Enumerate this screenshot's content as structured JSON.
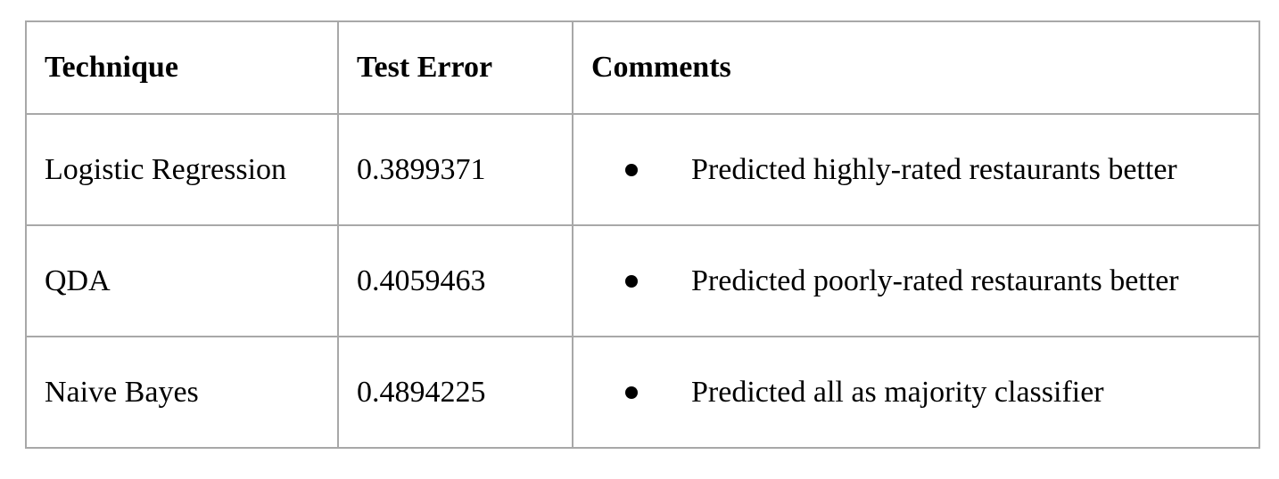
{
  "table": {
    "headers": [
      "Technique",
      "Test Error",
      "Comments"
    ],
    "rows": [
      {
        "technique": "Logistic Regression",
        "test_error": "0.3899371",
        "comment": "Predicted highly-rated restaurants better"
      },
      {
        "technique": "QDA",
        "test_error": "0.4059463",
        "comment": "Predicted poorly-rated restaurants better"
      },
      {
        "technique": "Naive Bayes",
        "test_error": "0.4894225",
        "comment": "Predicted all as majority classifier"
      }
    ]
  }
}
